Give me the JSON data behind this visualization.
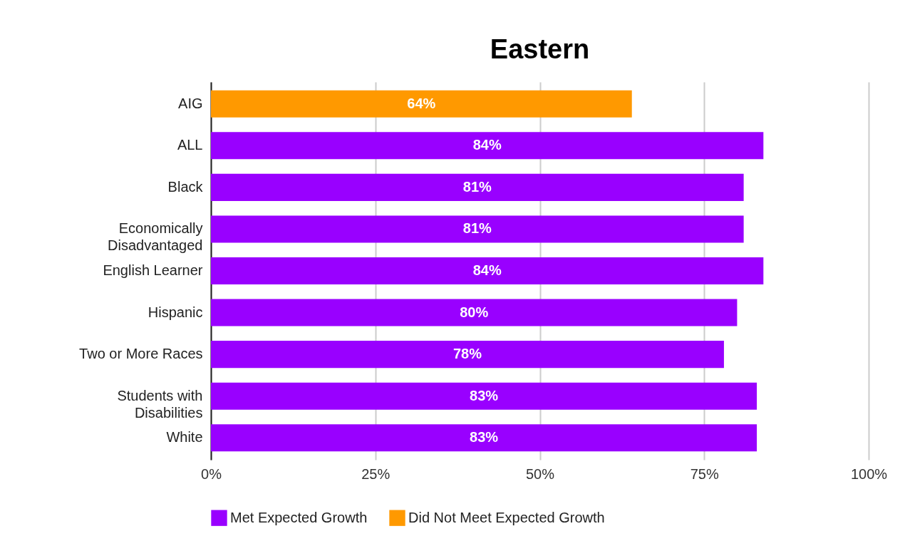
{
  "chart_data": {
    "type": "bar",
    "title": "Eastern",
    "orientation": "horizontal",
    "categories": [
      "AIG",
      "ALL",
      "Black",
      "Economically Disadvantaged",
      "English Learner",
      "Hispanic",
      "Two or More Races",
      "Students with Disabilities",
      "White"
    ],
    "series": [
      {
        "name": "Met Expected Growth",
        "color": "#9900ff",
        "values": [
          null,
          84,
          81,
          81,
          84,
          80,
          78,
          83,
          83
        ],
        "value_labels": [
          null,
          "84%",
          "81%",
          "81%",
          "84%",
          "80%",
          "78%",
          "83%",
          "83%"
        ]
      },
      {
        "name": "Did Not Meet Expected Growth",
        "color": "#ff9900",
        "values": [
          64,
          null,
          null,
          null,
          null,
          null,
          null,
          null,
          null
        ],
        "value_labels": [
          "64%",
          null,
          null,
          null,
          null,
          null,
          null,
          null,
          null
        ]
      }
    ],
    "xlim": [
      0,
      100
    ],
    "xticks": [
      {
        "value": 0,
        "label": "0%"
      },
      {
        "value": 25,
        "label": "25%"
      },
      {
        "value": 50,
        "label": "50%"
      },
      {
        "value": 75,
        "label": "75%"
      },
      {
        "value": 100,
        "label": "100%"
      }
    ],
    "grid": "x",
    "legend": "bottom"
  }
}
